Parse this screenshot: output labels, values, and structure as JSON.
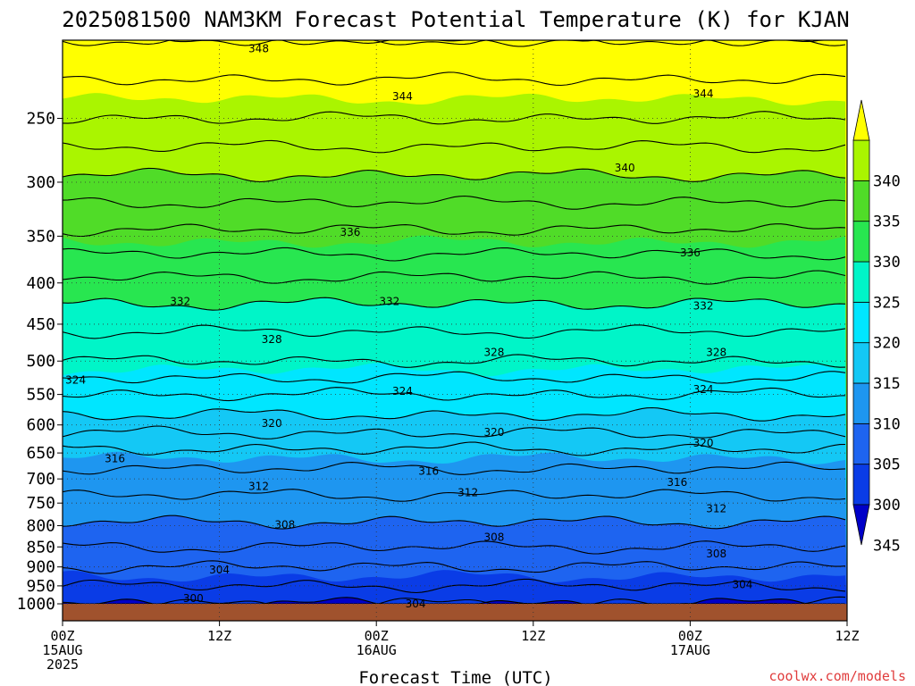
{
  "chart_data": {
    "type": "heatmap",
    "title": "2025081500 NAM3KM Forecast Potential Temperature (K) for KJAN",
    "xlabel": "Forecast Time (UTC)",
    "ylabel": "",
    "x_hours_range": [
      0,
      60
    ],
    "x_ticks": [
      {
        "hour": 0,
        "lines": [
          "00Z",
          "15AUG",
          "2025"
        ]
      },
      {
        "hour": 12,
        "lines": [
          "12Z"
        ]
      },
      {
        "hour": 24,
        "lines": [
          "00Z",
          "16AUG"
        ]
      },
      {
        "hour": 36,
        "lines": [
          "12Z"
        ]
      },
      {
        "hour": 48,
        "lines": [
          "00Z",
          "17AUG"
        ]
      },
      {
        "hour": 60,
        "lines": [
          "12Z"
        ]
      }
    ],
    "y_axis": "pressure (hPa), log scale, inverted",
    "ylim": [
      1000,
      200
    ],
    "y_ticks": [
      250,
      300,
      350,
      400,
      450,
      500,
      550,
      600,
      650,
      700,
      750,
      800,
      850,
      900,
      950,
      1000
    ],
    "grid": true,
    "color_levels": [
      {
        "min": 295,
        "max": 300,
        "color": "#0000c8"
      },
      {
        "min": 300,
        "max": 305,
        "color": "#0a3ce6"
      },
      {
        "min": 305,
        "max": 310,
        "color": "#1e64f0"
      },
      {
        "min": 310,
        "max": 315,
        "color": "#1e96f0"
      },
      {
        "min": 315,
        "max": 320,
        "color": "#14c8f5"
      },
      {
        "min": 320,
        "max": 325,
        "color": "#00e6ff"
      },
      {
        "min": 325,
        "max": 330,
        "color": "#00f5c8"
      },
      {
        "min": 330,
        "max": 335,
        "color": "#28e650"
      },
      {
        "min": 335,
        "max": 340,
        "color": "#50dc28"
      },
      {
        "min": 340,
        "max": 345,
        "color": "#aaf500"
      },
      {
        "min": 345,
        "max": 350,
        "color": "#ffff00"
      }
    ],
    "colorbar_labels": [
      "345",
      "340",
      "335",
      "330",
      "325",
      "320",
      "315",
      "310",
      "305",
      "300"
    ],
    "ground_color": "#a0522d",
    "theta_profile": [
      {
        "p": 1000,
        "theta": 302
      },
      {
        "p": 925,
        "theta": 305
      },
      {
        "p": 850,
        "theta": 308
      },
      {
        "p": 750,
        "theta": 311.5
      },
      {
        "p": 700,
        "theta": 313
      },
      {
        "p": 650,
        "theta": 315.5
      },
      {
        "p": 600,
        "theta": 319
      },
      {
        "p": 550,
        "theta": 322
      },
      {
        "p": 500,
        "theta": 326
      },
      {
        "p": 450,
        "theta": 328.5
      },
      {
        "p": 400,
        "theta": 331.5
      },
      {
        "p": 350,
        "theta": 335.5
      },
      {
        "p": 300,
        "theta": 339.5
      },
      {
        "p": 250,
        "theta": 344
      },
      {
        "p": 200,
        "theta": 348
      }
    ],
    "contour_labels": [
      {
        "text": "348",
        "hour": 15,
        "p": 205
      },
      {
        "text": "344",
        "hour": 26,
        "p": 235
      },
      {
        "text": "344",
        "hour": 49,
        "p": 233
      },
      {
        "text": "340",
        "hour": 43,
        "p": 288
      },
      {
        "text": "336",
        "hour": 22,
        "p": 346
      },
      {
        "text": "336",
        "hour": 48,
        "p": 367
      },
      {
        "text": "332",
        "hour": 9,
        "p": 422
      },
      {
        "text": "332",
        "hour": 25,
        "p": 422
      },
      {
        "text": "332",
        "hour": 49,
        "p": 427
      },
      {
        "text": "328",
        "hour": 16,
        "p": 470
      },
      {
        "text": "328",
        "hour": 33,
        "p": 488
      },
      {
        "text": "328",
        "hour": 50,
        "p": 488
      },
      {
        "text": "324",
        "hour": 1,
        "p": 528
      },
      {
        "text": "324",
        "hour": 26,
        "p": 545
      },
      {
        "text": "324",
        "hour": 49,
        "p": 542
      },
      {
        "text": "320",
        "hour": 16,
        "p": 597
      },
      {
        "text": "320",
        "hour": 33,
        "p": 613
      },
      {
        "text": "320",
        "hour": 49,
        "p": 632
      },
      {
        "text": "316",
        "hour": 4,
        "p": 661
      },
      {
        "text": "316",
        "hour": 28,
        "p": 685
      },
      {
        "text": "316",
        "hour": 47,
        "p": 707
      },
      {
        "text": "312",
        "hour": 15,
        "p": 715
      },
      {
        "text": "312",
        "hour": 31,
        "p": 728
      },
      {
        "text": "312",
        "hour": 50,
        "p": 762
      },
      {
        "text": "308",
        "hour": 17,
        "p": 798
      },
      {
        "text": "308",
        "hour": 33,
        "p": 827
      },
      {
        "text": "308",
        "hour": 50,
        "p": 867
      },
      {
        "text": "304",
        "hour": 12,
        "p": 908
      },
      {
        "text": "304",
        "hour": 27,
        "p": 1000
      },
      {
        "text": "304",
        "hour": 52,
        "p": 947
      },
      {
        "text": "300",
        "hour": 10,
        "p": 985
      }
    ]
  },
  "credit": "coolwx.com/models"
}
